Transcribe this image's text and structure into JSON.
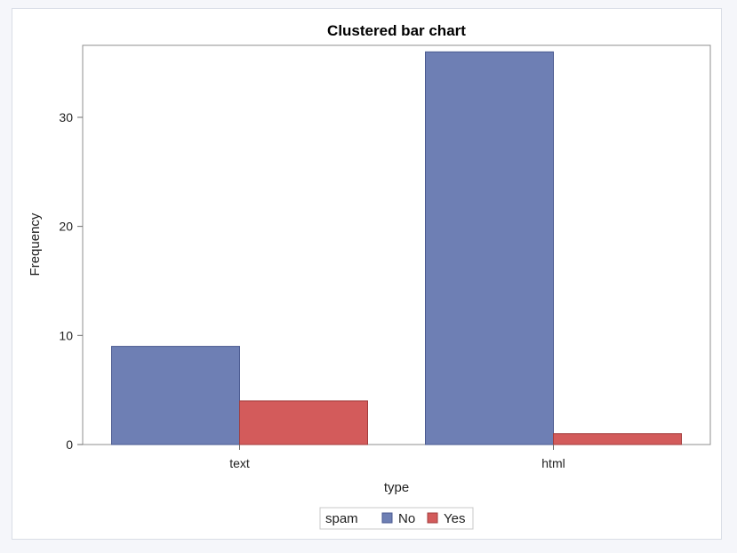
{
  "chart_data": {
    "type": "bar",
    "title": "Clustered bar chart",
    "xlabel": "type",
    "ylabel": "Frequency",
    "categories": [
      "text",
      "html"
    ],
    "series": [
      {
        "name": "No",
        "values": [
          9,
          36
        ],
        "color": "#6e7fb4"
      },
      {
        "name": "Yes",
        "values": [
          4,
          1
        ],
        "color": "#d35b5b"
      }
    ],
    "ylim": [
      0,
      36.6
    ],
    "yticks": [
      0,
      10,
      20,
      30
    ],
    "grid": false,
    "legend": {
      "title": "spam",
      "placement": "bottom-center"
    }
  }
}
